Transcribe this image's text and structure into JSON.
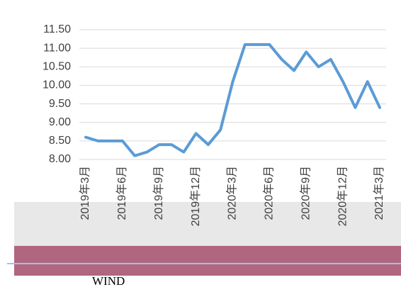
{
  "chart_data": {
    "type": "line",
    "categories": [
      "2019年3月",
      null,
      null,
      "2019年6月",
      null,
      null,
      "2019年9月",
      null,
      null,
      "2019年12月",
      null,
      null,
      "2020年3月",
      null,
      null,
      "2020年6月",
      null,
      null,
      "2020年9月",
      null,
      null,
      "2020年12月",
      null,
      null,
      "2021年3月"
    ],
    "series": [
      {
        "color": "#5b9bd5",
        "values": [
          8.6,
          8.5,
          8.5,
          8.5,
          8.1,
          8.2,
          8.4,
          8.4,
          8.2,
          8.7,
          8.4,
          8.8,
          10.1,
          11.1,
          11.1,
          11.1,
          10.7,
          10.4,
          10.9,
          10.5,
          10.7,
          10.1,
          9.4,
          10.1,
          9.4
        ]
      }
    ],
    "ylim": [
      8,
      11.5
    ],
    "yticks": [
      {
        "value": 8,
        "label": "8.00"
      },
      {
        "value": 8.5,
        "label": "8.50"
      },
      {
        "value": 9,
        "label": "9.00"
      },
      {
        "value": 9.5,
        "label": "9.50"
      },
      {
        "value": 10,
        "label": "10.00"
      },
      {
        "value": 10.5,
        "label": "10.50"
      },
      {
        "value": 11,
        "label": "11.00"
      },
      {
        "value": 11.5,
        "label": "11.50"
      }
    ],
    "grid": true,
    "source": "WIND"
  }
}
